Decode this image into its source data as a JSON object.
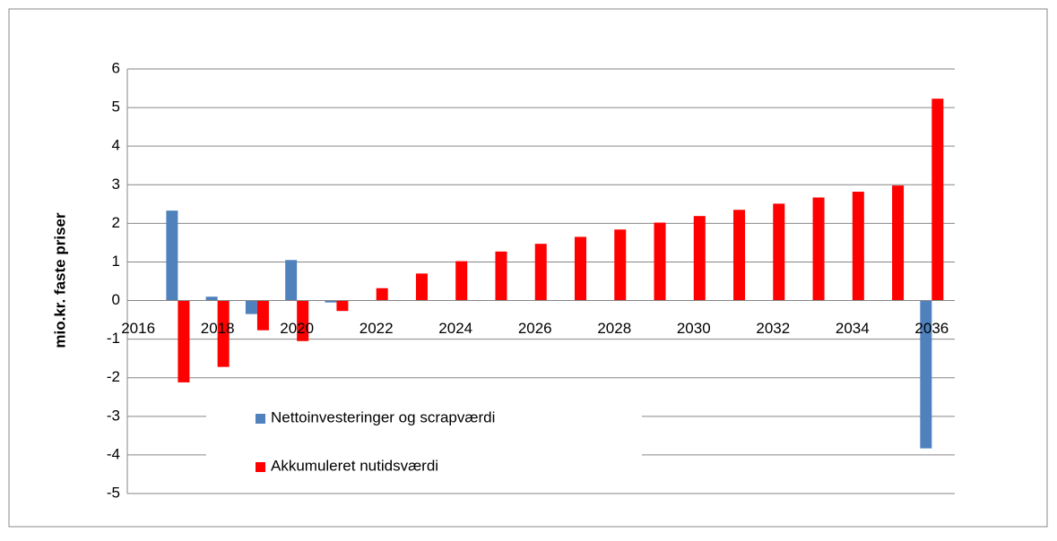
{
  "chart_data": {
    "type": "bar",
    "ylabel": "mio.kr. faste priser",
    "categories": [
      "2016",
      null,
      "2018",
      null,
      "2020",
      null,
      "2022",
      null,
      "2024",
      null,
      "2026",
      null,
      "2028",
      null,
      "2030",
      null,
      "2032",
      null,
      "2034",
      null,
      "2036"
    ],
    "series": [
      {
        "name": "Nettoinvesteringer og scrapværdi",
        "color": "#4f81bd",
        "values": [
          0,
          2.33,
          0.1,
          -0.35,
          1.05,
          -0.05,
          0,
          0,
          0,
          0,
          0,
          0,
          0,
          0,
          0,
          0,
          0,
          0,
          0,
          0,
          -3.83
        ]
      },
      {
        "name": "Akkumuleret nutidsværdi",
        "color": "#ff0000",
        "values": [
          0,
          -2.12,
          -1.72,
          -0.77,
          -1.05,
          -0.27,
          0.32,
          0.7,
          1.02,
          1.27,
          1.47,
          1.65,
          1.84,
          2.02,
          2.19,
          2.35,
          2.51,
          2.67,
          2.82,
          2.98,
          5.23
        ]
      }
    ],
    "ylim": [
      -5,
      6
    ],
    "yticks": [
      -5,
      -4,
      -3,
      -2,
      -1,
      0,
      1,
      2,
      3,
      4,
      5,
      6
    ],
    "grid": true
  }
}
